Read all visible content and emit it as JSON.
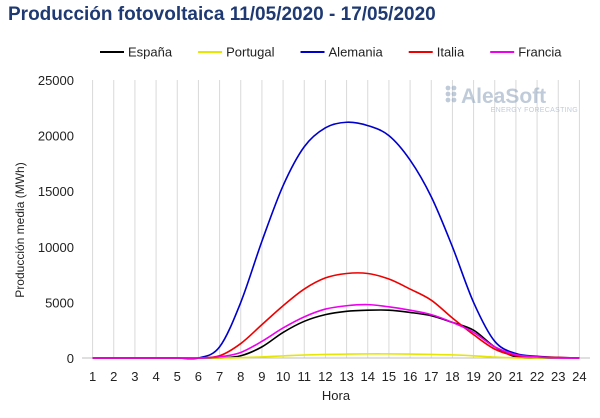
{
  "title": "Producción fotovoltaica 11/05/2020 - 17/05/2020",
  "watermark": {
    "brand": "AleaSoft",
    "tagline": "ENERGY FORECASTING"
  },
  "chart_data": {
    "type": "line",
    "title": "Producción fotovoltaica 11/05/2020 - 17/05/2020",
    "xlabel": "Hora",
    "ylabel": "Producción media (MWh)",
    "x": [
      1,
      2,
      3,
      4,
      5,
      6,
      7,
      8,
      9,
      10,
      11,
      12,
      13,
      14,
      15,
      16,
      17,
      18,
      19,
      20,
      21,
      22,
      23,
      24
    ],
    "ylim": [
      0,
      25000
    ],
    "yticks": [
      0,
      5000,
      10000,
      15000,
      20000,
      25000
    ],
    "grid": "vertical",
    "legend_position": "top",
    "series": [
      {
        "name": "España",
        "color": "#000000",
        "values": [
          0,
          0,
          0,
          0,
          0,
          0,
          0,
          200,
          1000,
          2300,
          3300,
          3900,
          4200,
          4300,
          4300,
          4100,
          3800,
          3200,
          2500,
          1000,
          100,
          0,
          0,
          0
        ]
      },
      {
        "name": "Portugal",
        "color": "#e6e600",
        "values": [
          0,
          0,
          0,
          0,
          0,
          0,
          0,
          30,
          100,
          190,
          270,
          320,
          350,
          370,
          370,
          350,
          320,
          280,
          200,
          80,
          10,
          0,
          0,
          0
        ]
      },
      {
        "name": "Alemania",
        "color": "#0000cc",
        "values": [
          0,
          0,
          0,
          0,
          0,
          0,
          1000,
          5000,
          10500,
          15500,
          19000,
          20700,
          21200,
          20900,
          20000,
          17800,
          14500,
          10000,
          5000,
          1500,
          400,
          150,
          50,
          0
        ]
      },
      {
        "name": "Italia",
        "color": "#ee0000",
        "values": [
          0,
          0,
          0,
          0,
          0,
          0,
          200,
          1300,
          3000,
          4700,
          6200,
          7200,
          7600,
          7600,
          7100,
          6200,
          5200,
          3600,
          2100,
          800,
          200,
          100,
          50,
          0
        ]
      },
      {
        "name": "Francia",
        "color": "#ee00ee",
        "values": [
          0,
          0,
          0,
          0,
          0,
          0,
          100,
          500,
          1500,
          2700,
          3700,
          4400,
          4700,
          4800,
          4600,
          4300,
          3900,
          3200,
          2300,
          1000,
          300,
          100,
          0,
          0
        ]
      }
    ]
  }
}
